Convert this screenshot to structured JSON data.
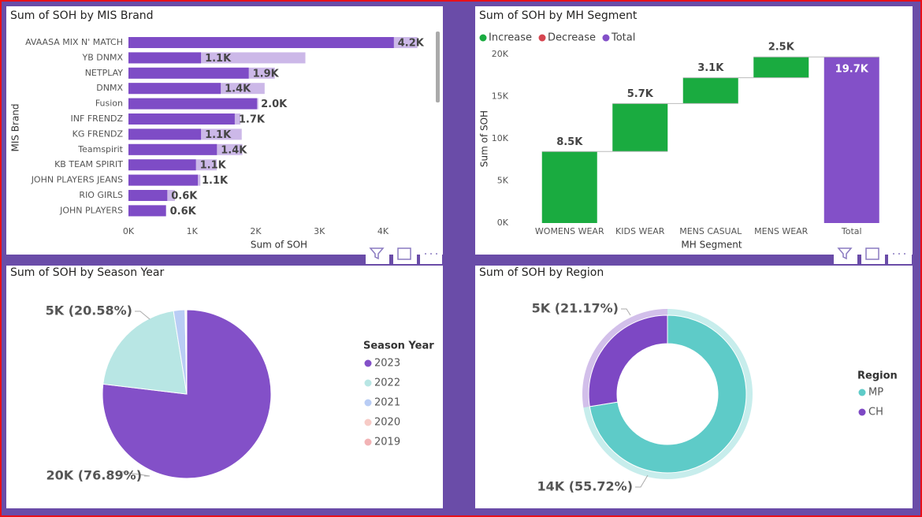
{
  "chart_data": [
    {
      "type": "bar",
      "orientation": "horizontal",
      "title": "Sum of SOH by MIS Brand",
      "x_label": "Sum of SOH",
      "y_label": "MIS Brand",
      "categories": [
        "AVAASA MIX N' MATCH",
        "YB DNMX",
        "NETPLAY",
        "DNMX",
        "Fusion",
        "INF FRENDZ",
        "KG FRENDZ",
        "Teamspirit",
        "KB TEAM SPIRIT",
        "JOHN PLAYERS JEANS",
        "RIO GIRLS",
        "JOHN PLAYERS"
      ],
      "series": [
        {
          "color": "#ccb8e8",
          "values": [
            4540,
            2780,
            2300,
            2140,
            2040,
            1760,
            1780,
            1790,
            1390,
            1130,
            730,
            590
          ]
        },
        {
          "color": "#7e4cc6",
          "values": [
            4170,
            1140,
            1890,
            1450,
            2020,
            1670,
            1140,
            1390,
            1060,
            1090,
            610,
            590
          ],
          "value_labels": [
            "4.2K",
            "1.1K",
            "1.9K",
            "1.4K",
            "2.0K",
            "1.7K",
            "1.1K",
            "1.4K",
            "1.1K",
            "1.1K",
            "0.6K",
            "0.6K"
          ]
        }
      ],
      "xlim": [
        0,
        4730
      ],
      "xticks": [
        {
          "value": 0,
          "label": "0K"
        },
        {
          "value": 1000,
          "label": "1K"
        },
        {
          "value": 2000,
          "label": "2K"
        },
        {
          "value": 3000,
          "label": "3K"
        },
        {
          "value": 4000,
          "label": "4K"
        }
      ]
    },
    {
      "type": "waterfall",
      "title": "Sum of SOH by MH Segment",
      "x_label": "MH Segment",
      "y_label": "Sum of SOH",
      "legend": [
        {
          "name": "Increase",
          "color": "#1aab40"
        },
        {
          "name": "Decrease",
          "color": "#d64550"
        },
        {
          "name": "Total",
          "color": "#8350c8"
        }
      ],
      "categories": [
        "WOMENS WEAR",
        "KIDS WEAR",
        "MENS CASUAL",
        "MENS WEAR",
        "Total"
      ],
      "values": [
        8480,
        5690,
        3060,
        2470,
        19700
      ],
      "legend_index": [
        0,
        0,
        0,
        0,
        2
      ],
      "value_labels": [
        "8.5K",
        "5.7K",
        "3.1K",
        "2.5K",
        "19.7K"
      ],
      "ylim": [
        0,
        20500
      ],
      "yticks": [
        {
          "value": 0,
          "label": "0K"
        },
        {
          "value": 5000,
          "label": "5K"
        },
        {
          "value": 10000,
          "label": "10K"
        },
        {
          "value": 15000,
          "label": "15K"
        },
        {
          "value": 20000,
          "label": "20K"
        }
      ]
    },
    {
      "type": "pie",
      "title": "Sum of SOH by Season Year",
      "legend_title": "Season Year",
      "categories": [
        "2023",
        "2022",
        "2021",
        "2020",
        "2019"
      ],
      "colors": [
        "#8350c8",
        "#b8e6e4",
        "#b9cdf5",
        "#f7cbc6",
        "#f2b3b5"
      ],
      "values": [
        76.89,
        20.58,
        2.2,
        0.2,
        0.13
      ],
      "value_labels": [
        "20K (76.89%)",
        "5K (20.58%)",
        null,
        null,
        null
      ]
    },
    {
      "type": "donut",
      "title": "Sum of SOH by Region",
      "legend_title": "Region",
      "categories": [
        "MP",
        "CH"
      ],
      "colors": [
        "#5ecbc8",
        "#7d48c4"
      ],
      "values": [
        55.72,
        21.17
      ],
      "value_labels": [
        "14K (55.72%)",
        "5K (21.17%)"
      ]
    }
  ]
}
